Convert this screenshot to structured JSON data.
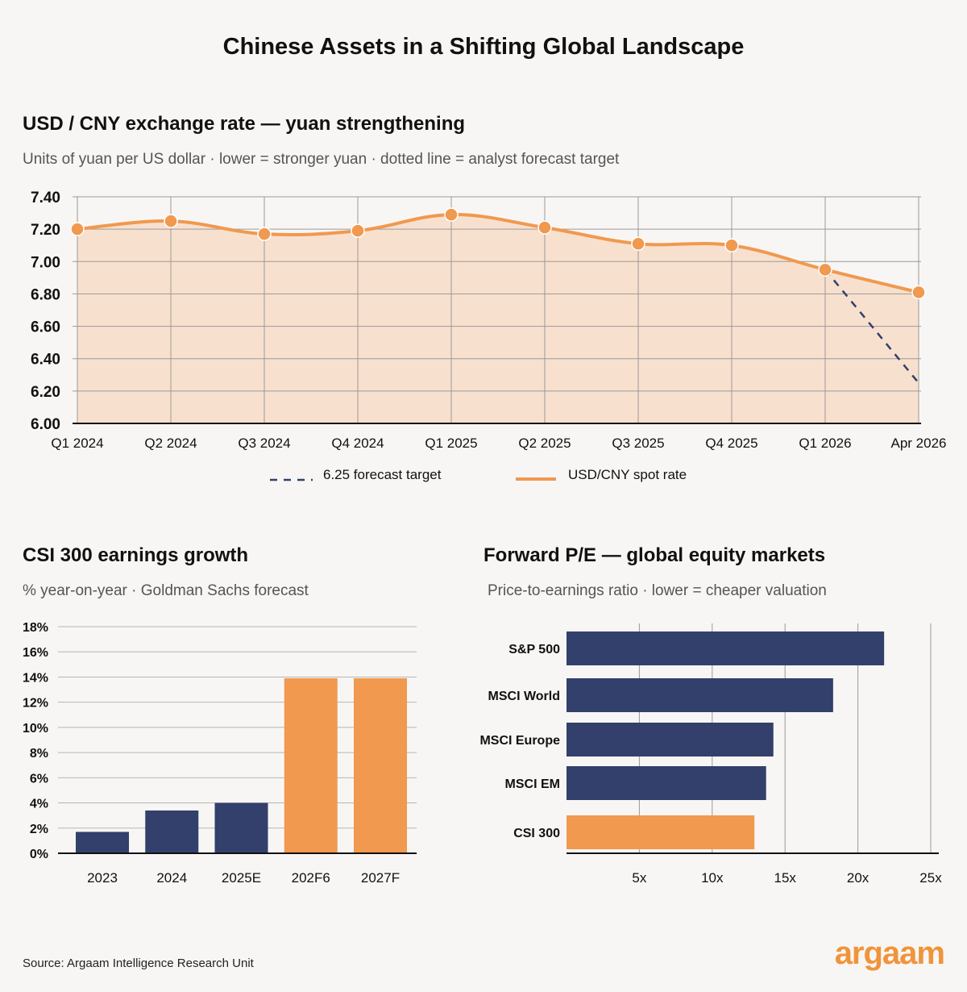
{
  "title": "Chinese Assets in a Shifting Global Landscape",
  "source": "Source: Argaam Intelligence Research Unit",
  "logo": "argaam",
  "colors": {
    "orange": "#f0994f",
    "navy": "#32406b",
    "fill": "#f8e0ce",
    "grid": "#9a9a9a"
  },
  "chart_data": [
    {
      "type": "line",
      "title": "USD / CNY exchange rate — yuan strengthening",
      "subtitle": "Units of yuan per US dollar · lower = stronger yuan · dotted line = analyst forecast target",
      "categories": [
        "Q1 2024",
        "Q2 2024",
        "Q3 2024",
        "Q4 2024",
        "Q1 2025",
        "Q2 2025",
        "Q3 2025",
        "Q4 2025",
        "Q1 2026",
        "Apr 2026"
      ],
      "series": [
        {
          "name": "USD/CNY spot rate",
          "values": [
            7.2,
            7.25,
            7.17,
            7.19,
            7.29,
            7.21,
            7.11,
            7.1,
            6.95,
            6.81
          ]
        },
        {
          "name": "6.25 forecast target",
          "points": [
            [
              "Q1 2026",
              6.95
            ],
            [
              "Apr 2026",
              6.25
            ]
          ]
        }
      ],
      "ylim": [
        6.0,
        7.4
      ],
      "yticks": [
        "6.00",
        "6.20",
        "6.40",
        "6.60",
        "6.80",
        "7.00",
        "7.20",
        "7.40"
      ],
      "grid": true,
      "legend_position": "bottom-center"
    },
    {
      "type": "bar",
      "title": "CSI 300 earnings growth",
      "subtitle": "% year-on-year · Goldman Sachs forecast",
      "categories": [
        "2023",
        "2024",
        "2025E",
        "202F6",
        "2027F"
      ],
      "values": [
        1.7,
        3.4,
        4.0,
        13.9,
        13.9
      ],
      "highlight": [
        false,
        false,
        false,
        true,
        true
      ],
      "ylim": [
        0,
        18
      ],
      "yticks": [
        "0%",
        "2%",
        "4%",
        "6%",
        "8%",
        "10%",
        "12%",
        "14%",
        "16%",
        "18%"
      ],
      "grid": true
    },
    {
      "type": "bar",
      "orientation": "horizontal",
      "title": "Forward P/E — global equity markets",
      "subtitle": "Price-to-earnings ratio · lower = cheaper valuation",
      "categories": [
        "S&P 500",
        "MSCI World",
        "MSCI Europe",
        "MSCI EM",
        "CSI 300"
      ],
      "values": [
        21.8,
        18.3,
        14.2,
        13.7,
        12.9
      ],
      "highlight": [
        false,
        false,
        false,
        false,
        true
      ],
      "xlim": [
        0,
        25
      ],
      "xticks": [
        {
          "value": 5,
          "label": "5x"
        },
        {
          "value": 10,
          "label": "10x"
        },
        {
          "value": 15,
          "label": "15x"
        },
        {
          "value": 20,
          "label": "20x"
        },
        {
          "value": 25,
          "label": "25x"
        }
      ],
      "grid": true
    }
  ]
}
